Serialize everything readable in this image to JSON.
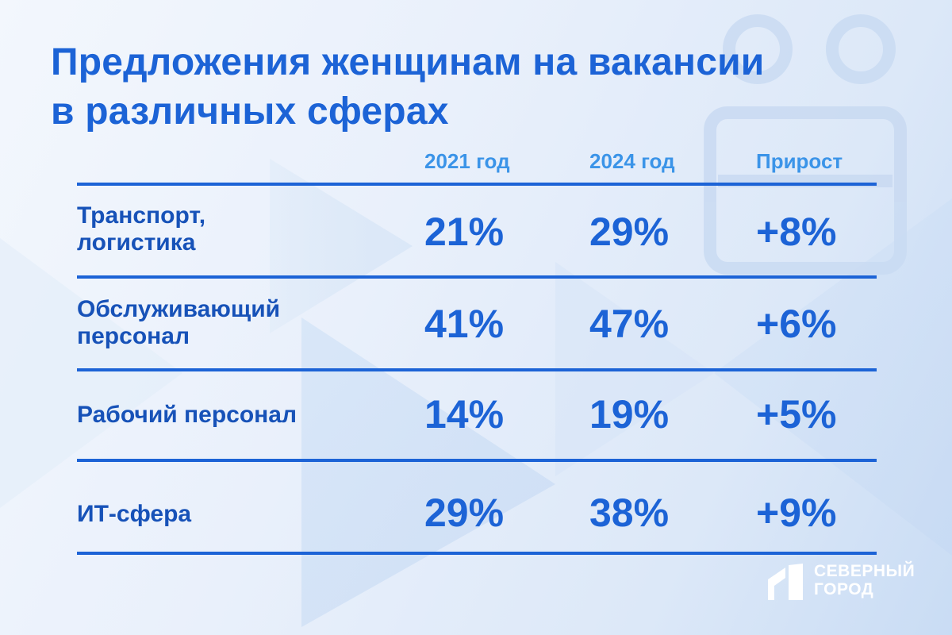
{
  "title_lines": [
    "Предложения женщинам на вакансии",
    "в различных сферах"
  ],
  "chart_data": {
    "type": "table",
    "columns": [
      "2021 год",
      "2024 год",
      "Прирост"
    ],
    "rows": [
      {
        "category_lines": [
          "Транспорт,",
          "логистика"
        ],
        "y2021": "21%",
        "y2024": "29%",
        "growth": "+8%"
      },
      {
        "category_lines": [
          "Обслуживающий",
          "персонал"
        ],
        "y2021": "41%",
        "y2024": "47%",
        "growth": "+6%"
      },
      {
        "category_lines": [
          "Рабочий персонал"
        ],
        "y2021": "14%",
        "y2024": "19%",
        "growth": "+5%"
      },
      {
        "category_lines": [
          "ИТ-сфера"
        ],
        "y2021": "29%",
        "y2024": "38%",
        "growth": "+9%"
      }
    ]
  },
  "logo": {
    "lines": [
      "СЕВЕРНЫЙ",
      "ГОРОД"
    ]
  },
  "colors": {
    "accent": "#1c63d6",
    "header": "#3b94e8",
    "label": "#1752b8"
  }
}
